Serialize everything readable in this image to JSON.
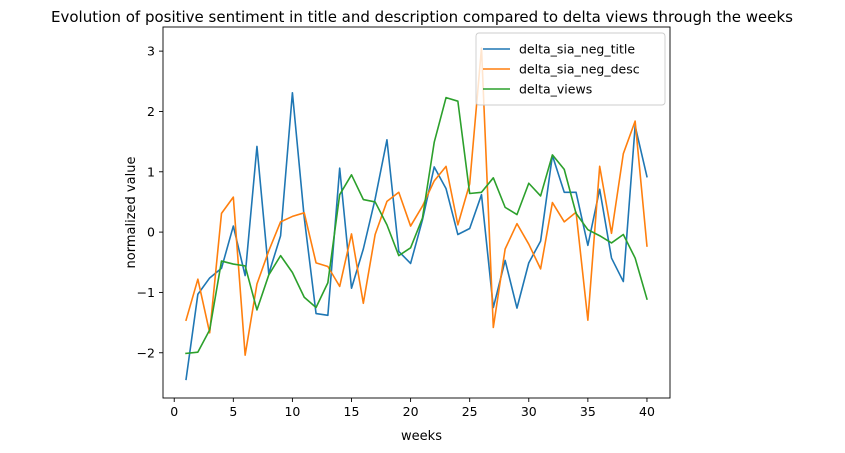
{
  "chart_data": {
    "type": "line",
    "title": "Evolution of positive sentiment in title and description compared to delta views through the weeks",
    "xlabel": "weeks",
    "ylabel": "normalized value",
    "xlim": [
      -0.95,
      41.95
    ],
    "ylim": [
      -2.75,
      3.4
    ],
    "xticks": [
      0,
      5,
      10,
      15,
      20,
      25,
      30,
      35,
      40
    ],
    "yticks": [
      -2,
      -1,
      0,
      1,
      2,
      3
    ],
    "grid": false,
    "legend_position": "top-right",
    "x": [
      1,
      2,
      3,
      4,
      5,
      6,
      7,
      8,
      9,
      10,
      11,
      12,
      13,
      14,
      15,
      16,
      17,
      18,
      19,
      20,
      21,
      22,
      23,
      24,
      25,
      26,
      27,
      28,
      29,
      30,
      31,
      32,
      33,
      34,
      35,
      36,
      37,
      38,
      39,
      40
    ],
    "series": [
      {
        "name": "delta_sia_neg_title",
        "color": "#1f77b4",
        "values": [
          -2.44,
          -1.03,
          -0.76,
          -0.6,
          0.1,
          -0.72,
          1.42,
          -0.69,
          -0.06,
          2.31,
          0.24,
          -1.35,
          -1.38,
          1.06,
          -0.93,
          -0.28,
          0.55,
          1.53,
          -0.32,
          -0.52,
          0.2,
          1.08,
          0.72,
          -0.04,
          0.06,
          0.62,
          -1.25,
          -0.47,
          -1.26,
          -0.51,
          -0.15,
          1.27,
          0.66,
          0.66,
          -0.22,
          0.71,
          -0.43,
          -0.82,
          1.76,
          0.92
        ]
      },
      {
        "name": "delta_sia_neg_desc",
        "color": "#ff7f0e",
        "values": [
          -1.46,
          -0.78,
          -1.67,
          0.31,
          0.58,
          -2.04,
          -0.86,
          -0.31,
          0.17,
          0.26,
          0.32,
          -0.51,
          -0.57,
          -0.9,
          -0.03,
          -1.18,
          -0.04,
          0.51,
          0.66,
          0.1,
          0.43,
          0.85,
          1.09,
          0.12,
          0.8,
          3.05,
          -1.58,
          -0.28,
          0.14,
          -0.2,
          -0.61,
          0.49,
          0.17,
          0.33,
          -1.46,
          1.09,
          -0.02,
          1.3,
          1.84,
          -0.23
        ]
      },
      {
        "name": "delta_views",
        "color": "#2ca02c",
        "values": [
          -2.01,
          -1.99,
          -1.62,
          -0.48,
          -0.53,
          -0.56,
          -1.29,
          -0.71,
          -0.39,
          -0.67,
          -1.08,
          -1.25,
          -0.84,
          0.62,
          0.95,
          0.54,
          0.5,
          0.12,
          -0.39,
          -0.26,
          0.23,
          1.49,
          2.23,
          2.17,
          0.64,
          0.66,
          0.9,
          0.41,
          0.29,
          0.81,
          0.6,
          1.28,
          1.04,
          0.31,
          0.04,
          -0.06,
          -0.18,
          -0.04,
          -0.43,
          -1.11
        ]
      }
    ]
  }
}
